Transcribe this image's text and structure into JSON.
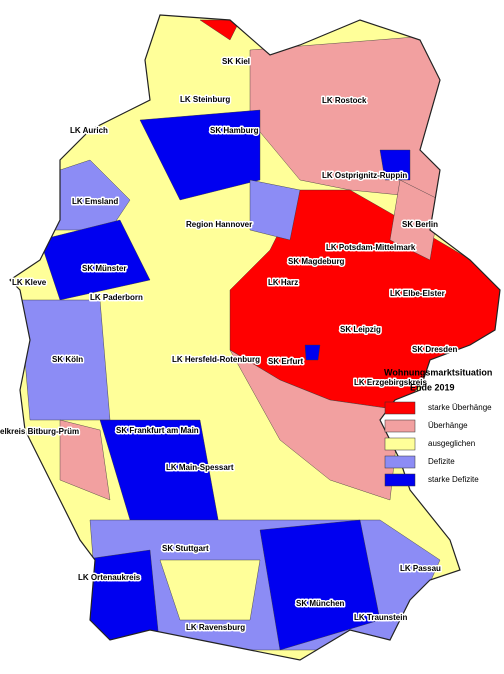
{
  "legend": {
    "title": "Wohnungsmarktsituation",
    "subtitle": "Ende 2019",
    "items": [
      {
        "name": "starke Überhänge",
        "color": "#ff0000"
      },
      {
        "name": "Überhänge",
        "color": "#f2a0a0"
      },
      {
        "name": "ausgeglichen",
        "color": "#ffff99"
      },
      {
        "name": "Defizite",
        "color": "#8c8cf5"
      },
      {
        "name": "starke Defizite",
        "color": "#0000f0"
      }
    ]
  },
  "labels": [
    "SK Kiel",
    "LK Steinburg",
    "LK Aurich",
    "SK Hamburg",
    "LK Rostock",
    "LK Ostprignitz-Ruppin",
    "LK Emsland",
    "Region Hannover",
    "SK Berlin",
    "LK Potsdam-Mittelmark",
    "SK Magdeburg",
    "SK Münster",
    "LK Kleve",
    "LK Harz",
    "LK Elbe-Elster",
    "LK Paderborn",
    "SK Leipzig",
    "SK Köln",
    "LK Hersfeld-Rotenburg",
    "SK Erfurt",
    "SK Dresden",
    "LK Erzgebirgskreis",
    "elkreis Bitburg-Prüm",
    "SK Frankfurt am Main",
    "LK Main-Spessart",
    "SK Stuttgart",
    "LK Passau",
    "LK Ortenaukreis",
    "SK München",
    "LK Traunstein",
    "LK Ravensburg"
  ]
}
